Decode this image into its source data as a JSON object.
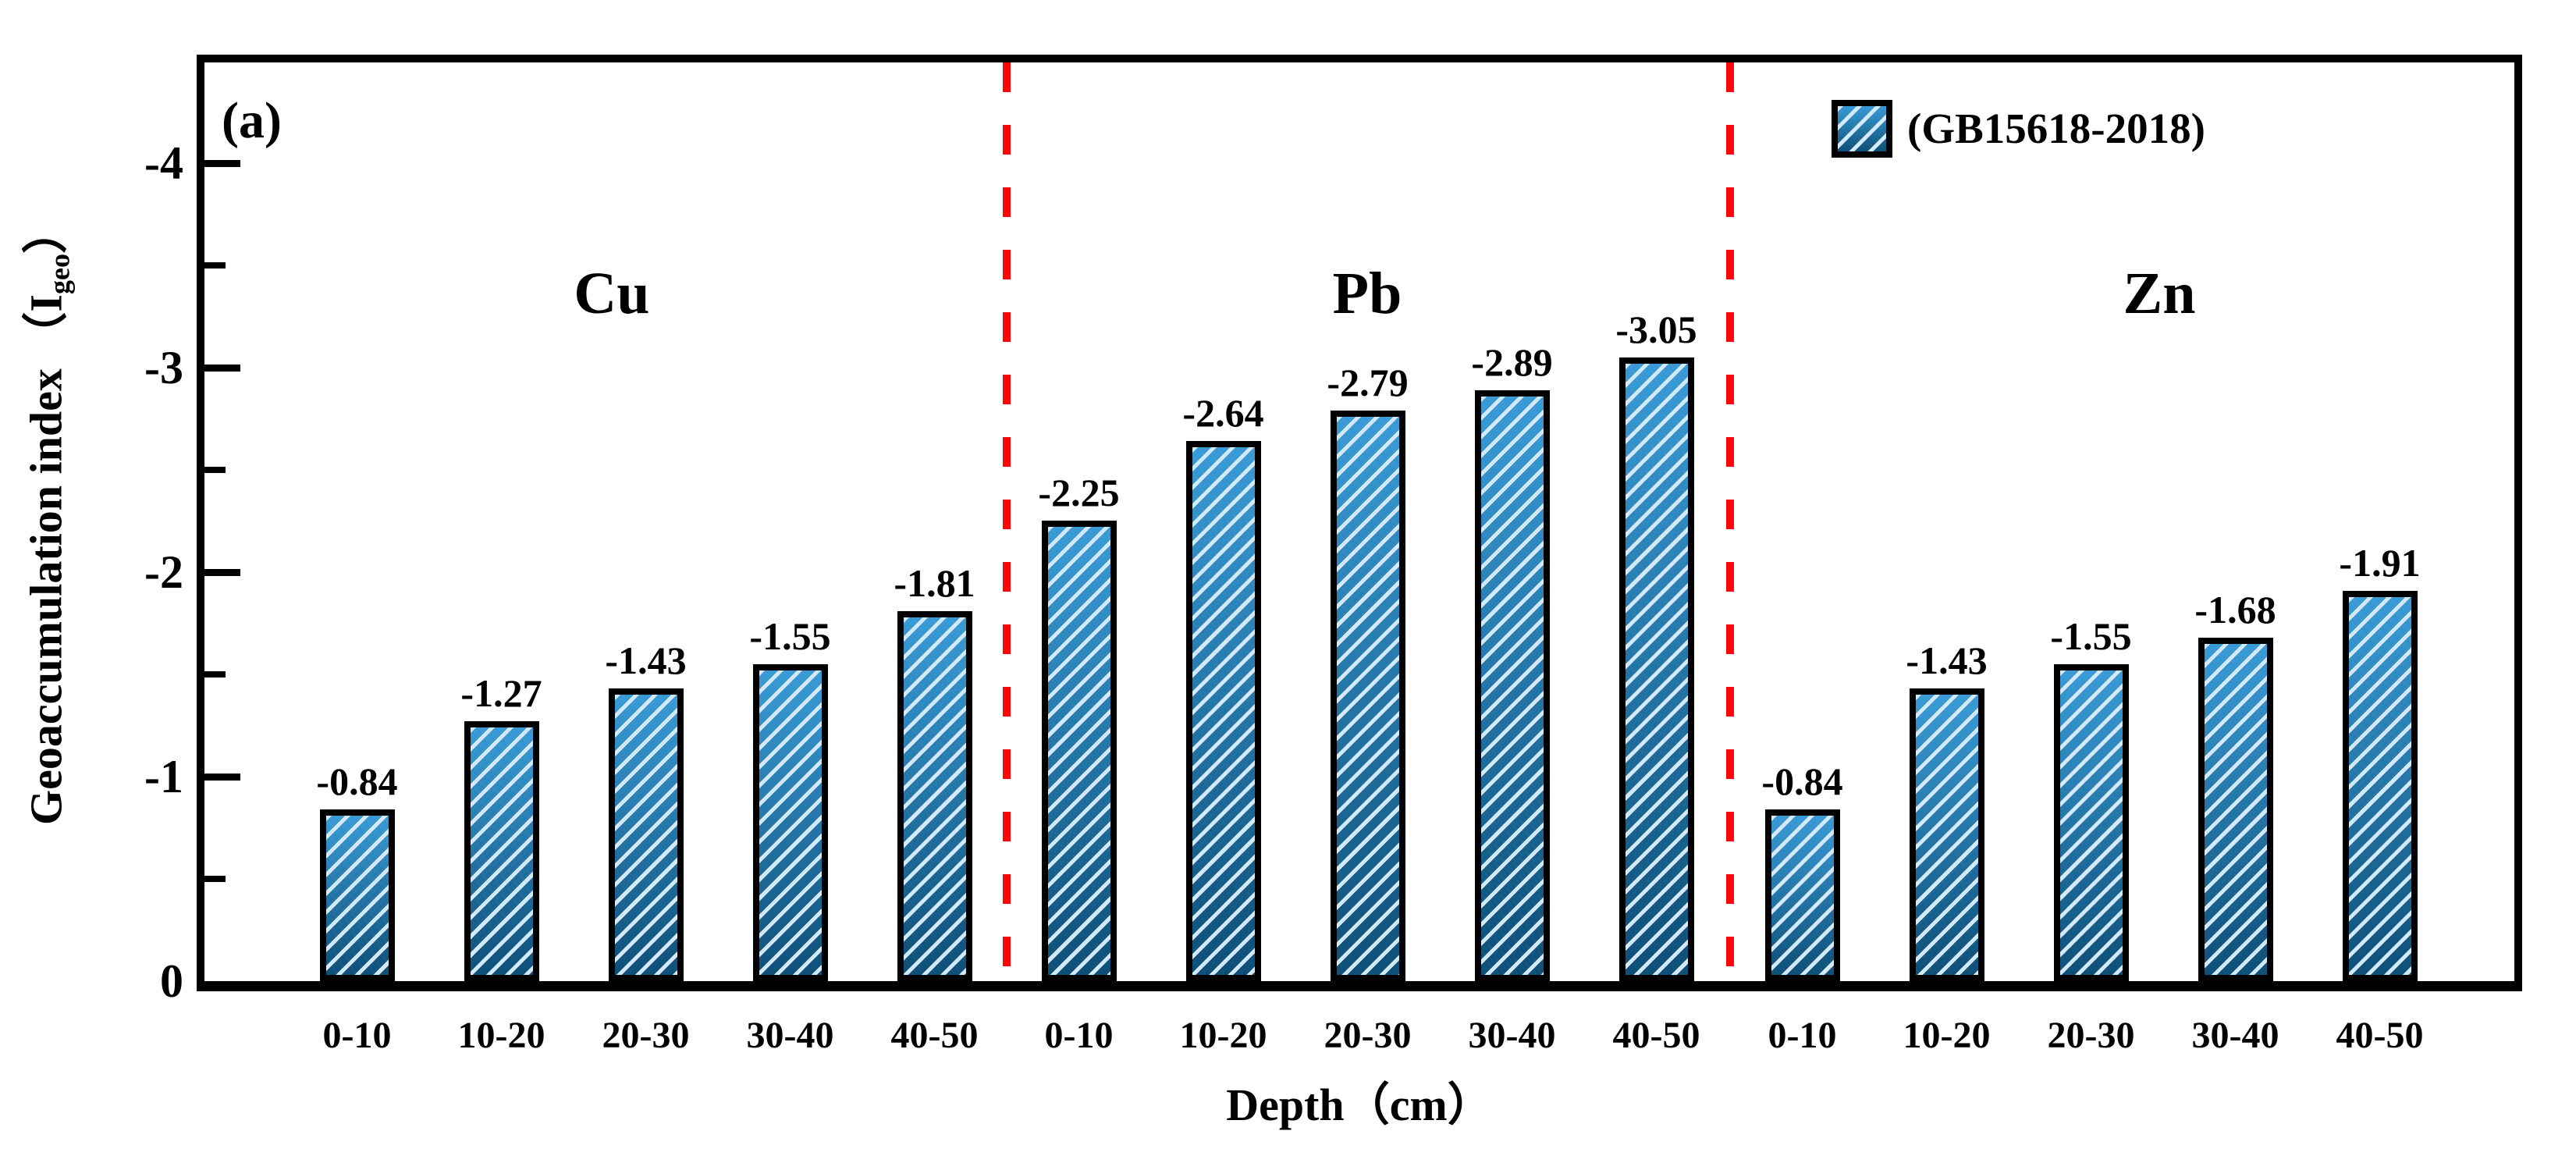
{
  "panel_label": "(a)",
  "legend": {
    "label": "(GB15618-2018)"
  },
  "y_axis": {
    "title_prefix": "Geoaccumulation index （I",
    "title_sub": "geo",
    "title_suffix": "）",
    "tick_labels": [
      {
        "label": "-4",
        "value": 4
      },
      {
        "label": "-3",
        "value": 3
      },
      {
        "label": "-2",
        "value": 2
      },
      {
        "label": "-1",
        "value": 1
      },
      {
        "label": "0",
        "value": 0
      }
    ]
  },
  "x_axis": {
    "title": "Depth（cm）"
  },
  "chart_data": {
    "type": "bar",
    "title": "",
    "xlabel": "Depth (cm)",
    "ylabel": "Geoaccumulation index (Igeo)",
    "ylim": [
      0,
      -4.5
    ],
    "y_major_ticks": [
      0,
      -1,
      -2,
      -3,
      -4
    ],
    "grid": false,
    "legend_position": "top-right",
    "categories": [
      "0-10",
      "10-20",
      "20-30",
      "30-40",
      "40-50"
    ],
    "series": [
      {
        "name": "Cu",
        "values": [
          -0.84,
          -1.27,
          -1.43,
          -1.55,
          -1.81
        ]
      },
      {
        "name": "Pb",
        "values": [
          -2.25,
          -2.64,
          -2.79,
          -2.89,
          -3.05
        ]
      },
      {
        "name": "Zn",
        "values": [
          -0.84,
          -1.43,
          -1.55,
          -1.68,
          -1.91
        ]
      }
    ],
    "bar_value_labels": [
      [
        "-0.84",
        "-1.27",
        "-1.43",
        "-1.55",
        "-1.81"
      ],
      [
        "-2.25",
        "-2.64",
        "-2.79",
        "-2.89",
        "-3.05"
      ],
      [
        "-0.84",
        "-1.43",
        "-1.55",
        "-1.68",
        "-1.91"
      ]
    ],
    "legend_entries": [
      "(GB15618-2018)"
    ]
  },
  "colors": {
    "bar_top": "#3a9bd6",
    "bar_bottom": "#0f5078",
    "hatch_line": "#d4e9f7",
    "divider_red": "#fa0808",
    "axis_black": "#000000"
  }
}
